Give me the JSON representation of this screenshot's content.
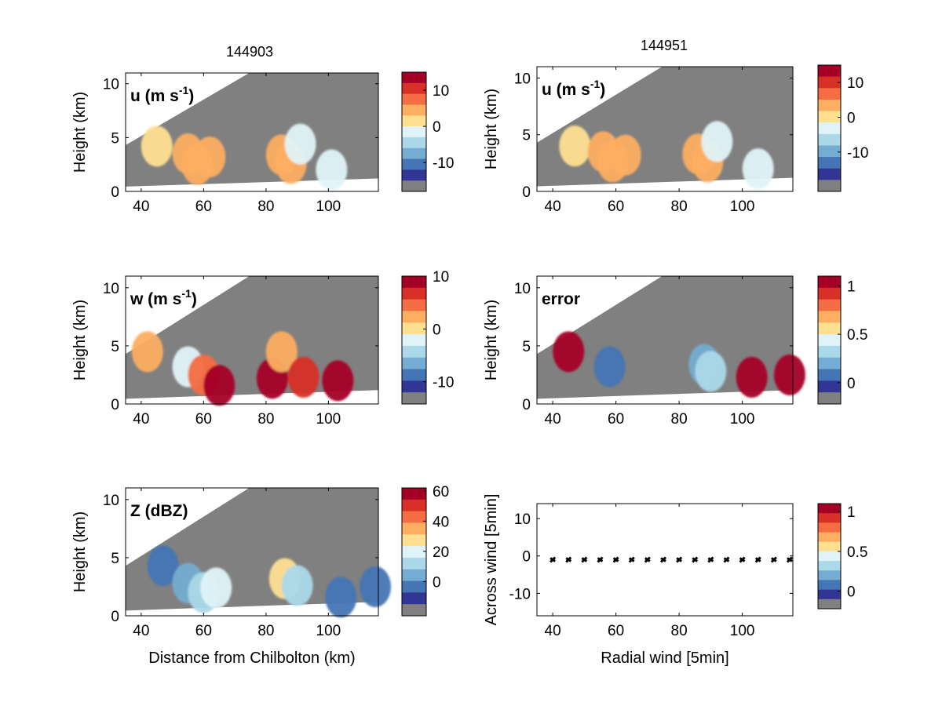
{
  "figure": {
    "time_left": "144903",
    "time_right": "144951"
  },
  "colormap": [
    "#313695",
    "#4575b4",
    "#74add1",
    "#abd9e9",
    "#e0f3f8",
    "#fee090",
    "#fdae61",
    "#f46d43",
    "#d73027",
    "#a50026"
  ],
  "mask_color": "#808080",
  "chart_data": [
    {
      "id": "u_left",
      "type": "heatmap",
      "title": "144903",
      "panel_label": "u (m s",
      "panel_label_sup": "-1",
      "panel_label_close": ")",
      "ylabel": "Height (km)",
      "xlabel": "",
      "xlim": [
        35,
        116
      ],
      "ylim": [
        0,
        11
      ],
      "xticks": [
        40,
        60,
        80,
        100
      ],
      "yticks": [
        0,
        5,
        10
      ],
      "colorbar": {
        "ticks": [
          {
            "v": 10,
            "label": "10"
          },
          {
            "v": 0,
            "label": "0"
          },
          {
            "v": -10,
            "label": "-10"
          }
        ],
        "range": [
          -15,
          15
        ],
        "mask_row": true
      },
      "cells": [
        {
          "x": 45,
          "y": 4.2,
          "v": 1
        },
        {
          "x": 55,
          "y": 3.5,
          "v": 3
        },
        {
          "x": 58,
          "y": 2.5,
          "v": 4
        },
        {
          "x": 62,
          "y": 3.2,
          "v": 3
        },
        {
          "x": 85,
          "y": 3.4,
          "v": 3
        },
        {
          "x": 88,
          "y": 2.6,
          "v": 4
        },
        {
          "x": 91,
          "y": 4.4,
          "v": -2
        },
        {
          "x": 101,
          "y": 2.0,
          "v": -2
        }
      ]
    },
    {
      "id": "u_right",
      "type": "heatmap",
      "title": "144951",
      "panel_label": "u (m s",
      "panel_label_sup": "-1",
      "panel_label_close": ")",
      "ylabel": "Height (km)",
      "xlabel": "",
      "xlim": [
        35,
        116
      ],
      "ylim": [
        0,
        11
      ],
      "xticks": [
        40,
        60,
        80,
        100
      ],
      "yticks": [
        0,
        5,
        10
      ],
      "colorbar": {
        "ticks": [
          {
            "v": 10,
            "label": "10"
          },
          {
            "v": 0,
            "label": "0"
          },
          {
            "v": -10,
            "label": "-10"
          }
        ],
        "range": [
          -18,
          15
        ],
        "mask_row": true
      },
      "cells": [
        {
          "x": 47,
          "y": 4.0,
          "v": 1
        },
        {
          "x": 56,
          "y": 3.5,
          "v": 3
        },
        {
          "x": 59,
          "y": 2.6,
          "v": 4
        },
        {
          "x": 63,
          "y": 3.2,
          "v": 3
        },
        {
          "x": 86,
          "y": 3.3,
          "v": 3
        },
        {
          "x": 89,
          "y": 2.6,
          "v": 4
        },
        {
          "x": 92,
          "y": 4.4,
          "v": -2
        },
        {
          "x": 105,
          "y": 2.0,
          "v": -2
        }
      ]
    },
    {
      "id": "w_left",
      "type": "heatmap",
      "title": "",
      "panel_label": "w (m s",
      "panel_label_sup": "-1",
      "panel_label_close": ")",
      "ylabel": "Height (km)",
      "xlabel": "",
      "xlim": [
        35,
        116
      ],
      "ylim": [
        0,
        11
      ],
      "xticks": [
        40,
        60,
        80,
        100
      ],
      "yticks": [
        0,
        5,
        10
      ],
      "colorbar": {
        "ticks": [
          {
            "v": 10,
            "label": "10"
          },
          {
            "v": 0,
            "label": "0"
          },
          {
            "v": -10,
            "label": "-10"
          }
        ],
        "range": [
          -12,
          10
        ],
        "mask_row": true
      },
      "cells": [
        {
          "x": 42,
          "y": 4.5,
          "v": 3
        },
        {
          "x": 55,
          "y": 3.2,
          "v": -3
        },
        {
          "x": 60,
          "y": 2.5,
          "v": 4
        },
        {
          "x": 65,
          "y": 1.6,
          "v": 10
        },
        {
          "x": 82,
          "y": 2.2,
          "v": 8
        },
        {
          "x": 85,
          "y": 4.5,
          "v": 3
        },
        {
          "x": 92,
          "y": 2.3,
          "v": 6
        },
        {
          "x": 103,
          "y": 2.0,
          "v": 9
        }
      ]
    },
    {
      "id": "error_right",
      "type": "heatmap",
      "title": "",
      "panel_label": "error",
      "panel_label_sup": "",
      "panel_label_close": "",
      "ylabel": "Height (km)",
      "xlabel": "",
      "xlim": [
        35,
        116
      ],
      "ylim": [
        0,
        11
      ],
      "xticks": [
        40,
        60,
        80,
        100
      ],
      "yticks": [
        0,
        5,
        10
      ],
      "colorbar": {
        "ticks": [
          {
            "v": 1,
            "label": "1"
          },
          {
            "v": 0.5,
            "label": "0.5"
          },
          {
            "v": 0,
            "label": "0"
          }
        ],
        "range": [
          -0.1,
          1.1
        ],
        "mask_row": true
      },
      "cells": [
        {
          "x": 45,
          "y": 4.5,
          "v": 1.0
        },
        {
          "x": 58,
          "y": 3.2,
          "v": 0.1
        },
        {
          "x": 88,
          "y": 3.4,
          "v": 0.15
        },
        {
          "x": 90,
          "y": 2.8,
          "v": 0.3
        },
        {
          "x": 103,
          "y": 2.3,
          "v": 1.0
        },
        {
          "x": 115,
          "y": 2.5,
          "v": 1.0
        }
      ]
    },
    {
      "id": "z_left",
      "type": "heatmap",
      "title": "",
      "panel_label": "Z (dBZ)",
      "panel_label_sup": "",
      "panel_label_close": "",
      "ylabel": "Height (km)",
      "xlabel": "Distance from Chilbolton (km)",
      "xlim": [
        35,
        116
      ],
      "ylim": [
        0,
        11
      ],
      "xticks": [
        40,
        60,
        80,
        100
      ],
      "yticks": [
        0,
        5,
        10
      ],
      "colorbar": {
        "ticks": [
          {
            "v": 60,
            "label": "60"
          },
          {
            "v": 40,
            "label": "40"
          },
          {
            "v": 20,
            "label": "20"
          },
          {
            "v": 0,
            "label": "0"
          }
        ],
        "range": [
          -15,
          62
        ],
        "mask_row": true
      },
      "cells": [
        {
          "x": 47,
          "y": 4.3,
          "v": -5
        },
        {
          "x": 55,
          "y": 2.8,
          "v": 5
        },
        {
          "x": 60,
          "y": 2.0,
          "v": 15
        },
        {
          "x": 64,
          "y": 2.4,
          "v": 18
        },
        {
          "x": 86,
          "y": 3.2,
          "v": 25
        },
        {
          "x": 90,
          "y": 2.6,
          "v": 15
        },
        {
          "x": 104,
          "y": 1.6,
          "v": -5
        },
        {
          "x": 115,
          "y": 2.5,
          "v": -5
        }
      ]
    },
    {
      "id": "wind_right",
      "type": "scatter",
      "title": "",
      "panel_label": "",
      "ylabel": "Across wind [5min]",
      "xlabel": "Radial wind [5min]",
      "xlim": [
        35,
        116
      ],
      "ylim": [
        -16,
        14
      ],
      "xticks": [
        40,
        60,
        80,
        100
      ],
      "yticks": [
        10,
        0,
        -10
      ],
      "colorbar": {
        "ticks": [
          {
            "v": 1,
            "label": "1"
          },
          {
            "v": 0.5,
            "label": "0.5"
          },
          {
            "v": 0,
            "label": "0"
          }
        ],
        "range": [
          -0.1,
          1.1
        ],
        "mask_row": true
      },
      "points": [
        {
          "x": 40,
          "y": -1
        },
        {
          "x": 45,
          "y": -1
        },
        {
          "x": 50,
          "y": -1
        },
        {
          "x": 55,
          "y": -1
        },
        {
          "x": 60,
          "y": -1
        },
        {
          "x": 65,
          "y": -1
        },
        {
          "x": 70,
          "y": -1
        },
        {
          "x": 75,
          "y": -1
        },
        {
          "x": 80,
          "y": -1
        },
        {
          "x": 85,
          "y": -1
        },
        {
          "x": 90,
          "y": -1
        },
        {
          "x": 95,
          "y": -1
        },
        {
          "x": 100,
          "y": -1
        },
        {
          "x": 105,
          "y": -1
        },
        {
          "x": 110,
          "y": -1
        },
        {
          "x": 115,
          "y": -1
        }
      ]
    }
  ]
}
